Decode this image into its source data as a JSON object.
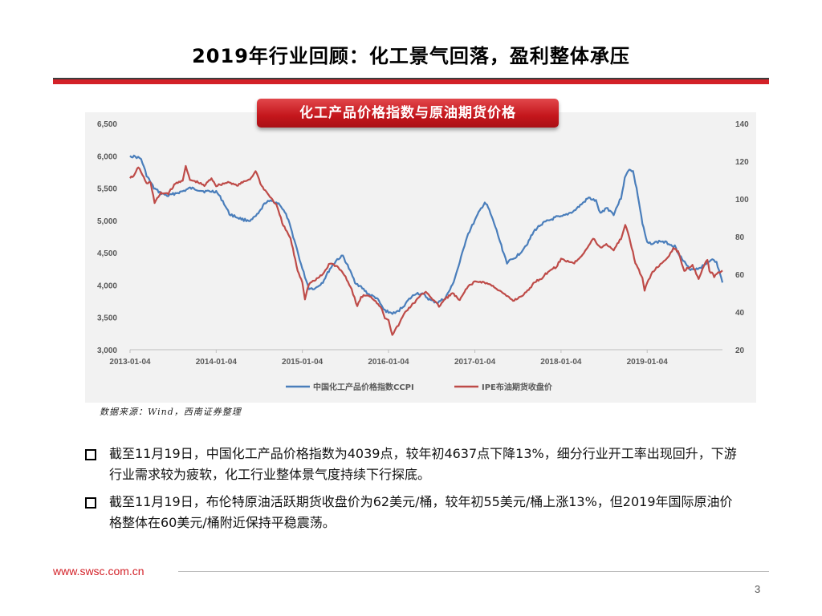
{
  "slide": {
    "title": "2019年行业回顾：化工景气回落，盈利整体承压",
    "chart_banner": "化工产品价格指数与原油期货价格",
    "source": "数据来源：Wind，西南证券整理",
    "bullets": [
      "截至11月19日，中国化工产品价格指数为4039点，较年初4637点下降13%，细分行业开工率出现回升，下游行业需求较为疲软，化工行业整体景气度持续下行探底。",
      "截至11月19日，布伦特原油活跃期货收盘价为62美元/桶，较年初55美元/桶上涨13%，但2019年国际原油价格整体在60美元/桶附近保持平稳震荡。"
    ],
    "footer_url": "www.swsc.com.cn",
    "page_number": "3"
  },
  "colors": {
    "accent_red": "#d32128",
    "ccpi_line": "#4a7ebb",
    "ipe_line": "#be4b48",
    "chart_bg": "#f2f2f2"
  },
  "chart_data": {
    "type": "line",
    "title": "化工产品价格指数与原油期货价格",
    "x_ticks": [
      "2013-01-04",
      "2014-01-04",
      "2015-01-04",
      "2016-01-04",
      "2017-01-04",
      "2018-01-04",
      "2019-01-04"
    ],
    "y_left": {
      "min": 3000,
      "max": 6500,
      "ticks": [
        3000,
        3500,
        4000,
        4500,
        5000,
        5500,
        6000,
        6500
      ],
      "tick_labels": [
        "3,000",
        "3,500",
        "4,000",
        "4,500",
        "5,000",
        "5,500",
        "6,000",
        "6,500"
      ]
    },
    "y_right": {
      "min": 20,
      "max": 140,
      "ticks": [
        20,
        40,
        60,
        80,
        100,
        120,
        140
      ],
      "tick_labels": [
        "20",
        "40",
        "60",
        "80",
        "100",
        "120",
        "140"
      ]
    },
    "x_domain": [
      "2013-01-04",
      "2019-11-19"
    ],
    "legend_position": "bottom",
    "grid": false,
    "series": [
      {
        "name": "中国化工产品价格指数CCPI",
        "axis": "left",
        "points": [
          [
            "2013-01-04",
            6000
          ],
          [
            "2013-02-01",
            5980
          ],
          [
            "2013-02-20",
            5950
          ],
          [
            "2013-03-15",
            5700
          ],
          [
            "2013-04-15",
            5500
          ],
          [
            "2013-05-15",
            5420
          ],
          [
            "2013-06-15",
            5380
          ],
          [
            "2013-07-15",
            5420
          ],
          [
            "2013-08-15",
            5450
          ],
          [
            "2013-09-15",
            5500
          ],
          [
            "2013-10-15",
            5480
          ],
          [
            "2013-11-15",
            5450
          ],
          [
            "2013-12-15",
            5450
          ],
          [
            "2014-01-04",
            5450
          ],
          [
            "2014-02-01",
            5300
          ],
          [
            "2014-03-01",
            5100
          ],
          [
            "2014-04-01",
            5050
          ],
          [
            "2014-05-01",
            5010
          ],
          [
            "2014-06-01",
            5000
          ],
          [
            "2014-07-01",
            5100
          ],
          [
            "2014-08-01",
            5280
          ],
          [
            "2014-09-01",
            5300
          ],
          [
            "2014-10-01",
            5250
          ],
          [
            "2014-11-01",
            5050
          ],
          [
            "2014-12-01",
            4700
          ],
          [
            "2015-01-04",
            4250
          ],
          [
            "2015-02-01",
            3950
          ],
          [
            "2015-03-01",
            3950
          ],
          [
            "2015-04-01",
            4050
          ],
          [
            "2015-05-01",
            4250
          ],
          [
            "2015-06-01",
            4400
          ],
          [
            "2015-06-25",
            4450
          ],
          [
            "2015-07-15",
            4300
          ],
          [
            "2015-08-15",
            4050
          ],
          [
            "2015-09-15",
            3950
          ],
          [
            "2015-10-15",
            3850
          ],
          [
            "2015-11-15",
            3800
          ],
          [
            "2015-12-15",
            3620
          ],
          [
            "2016-01-04",
            3580
          ],
          [
            "2016-02-01",
            3560
          ],
          [
            "2016-03-01",
            3650
          ],
          [
            "2016-04-01",
            3780
          ],
          [
            "2016-05-01",
            3880
          ],
          [
            "2016-06-01",
            3850
          ],
          [
            "2016-07-01",
            3760
          ],
          [
            "2016-08-01",
            3730
          ],
          [
            "2016-09-01",
            3800
          ],
          [
            "2016-10-01",
            4000
          ],
          [
            "2016-11-01",
            4350
          ],
          [
            "2016-12-01",
            4750
          ],
          [
            "2017-01-04",
            5000
          ],
          [
            "2017-01-25",
            5150
          ],
          [
            "2017-02-15",
            5280
          ],
          [
            "2017-03-01",
            5200
          ],
          [
            "2017-04-01",
            4900
          ],
          [
            "2017-05-01",
            4550
          ],
          [
            "2017-05-20",
            4350
          ],
          [
            "2017-06-15",
            4400
          ],
          [
            "2017-07-15",
            4500
          ],
          [
            "2017-08-15",
            4650
          ],
          [
            "2017-09-15",
            4850
          ],
          [
            "2017-10-15",
            4950
          ],
          [
            "2017-11-15",
            5000
          ],
          [
            "2017-12-15",
            5050
          ],
          [
            "2018-01-04",
            5050
          ],
          [
            "2018-02-01",
            5100
          ],
          [
            "2018-03-01",
            5150
          ],
          [
            "2018-04-01",
            5250
          ],
          [
            "2018-05-01",
            5350
          ],
          [
            "2018-06-01",
            5300
          ],
          [
            "2018-06-20",
            5100
          ],
          [
            "2018-07-15",
            5200
          ],
          [
            "2018-08-15",
            5100
          ],
          [
            "2018-09-15",
            5350
          ],
          [
            "2018-10-01",
            5650
          ],
          [
            "2018-10-20",
            5800
          ],
          [
            "2018-11-05",
            5760
          ],
          [
            "2018-11-25",
            5400
          ],
          [
            "2018-12-15",
            4950
          ],
          [
            "2019-01-04",
            4650
          ],
          [
            "2019-02-01",
            4650
          ],
          [
            "2019-03-01",
            4680
          ],
          [
            "2019-04-01",
            4650
          ],
          [
            "2019-05-01",
            4600
          ],
          [
            "2019-06-01",
            4400
          ],
          [
            "2019-07-01",
            4250
          ],
          [
            "2019-08-01",
            4250
          ],
          [
            "2019-09-01",
            4300
          ],
          [
            "2019-10-01",
            4400
          ],
          [
            "2019-10-25",
            4350
          ],
          [
            "2019-11-19",
            4039
          ]
        ]
      },
      {
        "name": "IPE布油期货收盘价",
        "axis": "right",
        "points": [
          [
            "2013-01-04",
            111
          ],
          [
            "2013-01-25",
            113
          ],
          [
            "2013-02-08",
            117
          ],
          [
            "2013-02-25",
            113
          ],
          [
            "2013-03-15",
            108
          ],
          [
            "2013-04-01",
            109
          ],
          [
            "2013-04-18",
            98
          ],
          [
            "2013-05-15",
            103
          ],
          [
            "2013-06-15",
            103
          ],
          [
            "2013-07-15",
            108
          ],
          [
            "2013-08-15",
            110
          ],
          [
            "2013-08-28",
            117
          ],
          [
            "2013-09-15",
            110
          ],
          [
            "2013-10-15",
            109
          ],
          [
            "2013-11-15",
            107
          ],
          [
            "2013-12-15",
            111
          ],
          [
            "2014-01-04",
            107
          ],
          [
            "2014-02-01",
            108
          ],
          [
            "2014-03-01",
            109
          ],
          [
            "2014-04-01",
            107
          ],
          [
            "2014-05-01",
            109
          ],
          [
            "2014-06-01",
            111
          ],
          [
            "2014-06-20",
            115
          ],
          [
            "2014-07-15",
            107
          ],
          [
            "2014-08-15",
            102
          ],
          [
            "2014-09-15",
            97
          ],
          [
            "2014-10-15",
            86
          ],
          [
            "2014-11-15",
            79
          ],
          [
            "2014-12-15",
            62
          ],
          [
            "2015-01-04",
            56
          ],
          [
            "2015-01-15",
            47
          ],
          [
            "2015-02-01",
            55
          ],
          [
            "2015-03-01",
            57
          ],
          [
            "2015-04-01",
            60
          ],
          [
            "2015-05-01",
            66
          ],
          [
            "2015-06-01",
            64
          ],
          [
            "2015-07-01",
            60
          ],
          [
            "2015-08-01",
            52
          ],
          [
            "2015-08-25",
            43
          ],
          [
            "2015-09-10",
            48
          ],
          [
            "2015-10-01",
            49
          ],
          [
            "2015-11-01",
            47
          ],
          [
            "2015-12-01",
            43
          ],
          [
            "2015-12-20",
            37
          ],
          [
            "2016-01-04",
            36
          ],
          [
            "2016-01-20",
            28
          ],
          [
            "2016-02-15",
            33
          ],
          [
            "2016-03-15",
            40
          ],
          [
            "2016-04-15",
            44
          ],
          [
            "2016-05-15",
            48
          ],
          [
            "2016-06-10",
            51
          ],
          [
            "2016-07-15",
            46
          ],
          [
            "2016-08-05",
            43
          ],
          [
            "2016-09-01",
            47
          ],
          [
            "2016-10-01",
            50
          ],
          [
            "2016-11-01",
            46
          ],
          [
            "2016-12-01",
            53
          ],
          [
            "2017-01-04",
            56
          ],
          [
            "2017-02-01",
            56
          ],
          [
            "2017-03-01",
            55
          ],
          [
            "2017-04-01",
            53
          ],
          [
            "2017-05-01",
            50
          ],
          [
            "2017-06-15",
            46
          ],
          [
            "2017-07-15",
            48
          ],
          [
            "2017-08-15",
            51
          ],
          [
            "2017-09-15",
            56
          ],
          [
            "2017-10-15",
            58
          ],
          [
            "2017-11-15",
            62
          ],
          [
            "2017-12-15",
            64
          ],
          [
            "2018-01-04",
            68
          ],
          [
            "2018-02-01",
            67
          ],
          [
            "2018-03-01",
            66
          ],
          [
            "2018-04-01",
            70
          ],
          [
            "2018-05-01",
            75
          ],
          [
            "2018-05-20",
            79
          ],
          [
            "2018-06-20",
            74
          ],
          [
            "2018-07-15",
            76
          ],
          [
            "2018-08-15",
            73
          ],
          [
            "2018-09-15",
            79
          ],
          [
            "2018-10-03",
            86
          ],
          [
            "2018-10-20",
            80
          ],
          [
            "2018-11-15",
            66
          ],
          [
            "2018-12-15",
            58
          ],
          [
            "2018-12-24",
            51
          ],
          [
            "2019-01-04",
            56
          ],
          [
            "2019-02-01",
            62
          ],
          [
            "2019-03-01",
            65
          ],
          [
            "2019-04-01",
            69
          ],
          [
            "2019-04-25",
            74
          ],
          [
            "2019-05-15",
            72
          ],
          [
            "2019-06-10",
            62
          ],
          [
            "2019-07-15",
            65
          ],
          [
            "2019-08-10",
            58
          ],
          [
            "2019-09-16",
            68
          ],
          [
            "2019-09-25",
            62
          ],
          [
            "2019-10-15",
            59
          ],
          [
            "2019-11-01",
            61
          ],
          [
            "2019-11-19",
            62
          ]
        ]
      }
    ]
  }
}
